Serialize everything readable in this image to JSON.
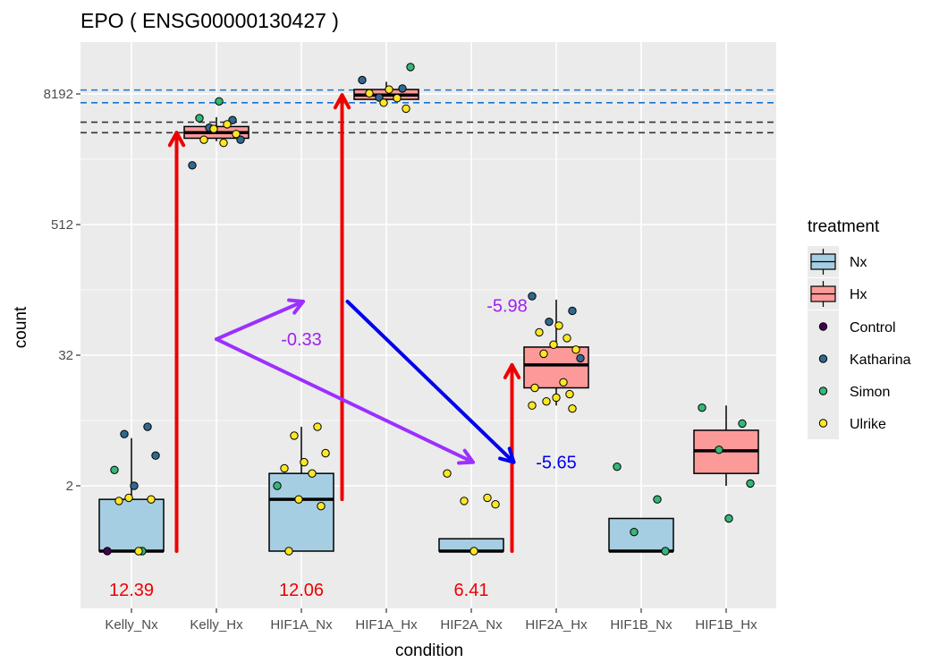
{
  "chart_data": {
    "type": "boxplot",
    "title": "EPO ( ENSG00000130427 )",
    "xlabel": "condition",
    "ylabel": "count",
    "y_scale": "log2",
    "y_ticks": [
      2,
      32,
      512,
      8192
    ],
    "y_tick_labels": [
      "2",
      "32",
      "512",
      "8192"
    ],
    "categories": [
      "Kelly_Nx",
      "Kelly_Hx",
      "HIF1A_Nx",
      "HIF1A_Hx",
      "HIF2A_Nx",
      "HIF2A_Hx",
      "HIF1B_Nx",
      "HIF1B_Hx"
    ],
    "boxes": [
      {
        "category": "Kelly_Nx",
        "treatment": "Nx",
        "min": 0.5,
        "q1": 0.5,
        "median": 0.5,
        "q3": 1.5,
        "max": 5.5
      },
      {
        "category": "Kelly_Hx",
        "treatment": "Hx",
        "min": 3000,
        "q1": 3200,
        "median": 3600,
        "q3": 4100,
        "max": 5000
      },
      {
        "category": "HIF1A_Nx",
        "treatment": "Nx",
        "min": 0.5,
        "q1": 0.5,
        "median": 1.5,
        "q3": 2.6,
        "max": 7.0
      },
      {
        "category": "HIF1A_Hx",
        "treatment": "Hx",
        "min": 7000,
        "q1": 7300,
        "median": 8000,
        "q3": 9000,
        "max": 10600
      },
      {
        "category": "HIF2A_Nx",
        "treatment": "Nx",
        "min": 0.5,
        "q1": 0.5,
        "median": 0.5,
        "q3": 0.65,
        "max": 0.65
      },
      {
        "category": "HIF2A_Hx",
        "treatment": "Hx",
        "min": 11,
        "q1": 16,
        "median": 26,
        "q3": 38,
        "max": 104
      },
      {
        "category": "HIF1B_Nx",
        "treatment": "Nx",
        "min": 0.5,
        "q1": 0.5,
        "median": 0.5,
        "q3": 1.0,
        "max": 1.0
      },
      {
        "category": "HIF1B_Hx",
        "treatment": "Hx",
        "min": 2.0,
        "q1": 2.6,
        "median": 4.2,
        "q3": 6.5,
        "max": 11
      }
    ],
    "points": [
      {
        "category": "Kelly_Nx",
        "sample": "Control",
        "y": 0.5
      },
      {
        "category": "Kelly_Nx",
        "sample": "Katharina",
        "y": 7.0
      },
      {
        "category": "Kelly_Nx",
        "sample": "Katharina",
        "y": 6.0
      },
      {
        "category": "Kelly_Nx",
        "sample": "Katharina",
        "y": 3.8
      },
      {
        "category": "Kelly_Nx",
        "sample": "Katharina",
        "y": 2.0
      },
      {
        "category": "Kelly_Nx",
        "sample": "Simon",
        "y": 2.8
      },
      {
        "category": "Kelly_Nx",
        "sample": "Simon",
        "y": 0.5
      },
      {
        "category": "Kelly_Nx",
        "sample": "Ulrike",
        "y": 1.55
      },
      {
        "category": "Kelly_Nx",
        "sample": "Ulrike",
        "y": 1.5
      },
      {
        "category": "Kelly_Nx",
        "sample": "Ulrike",
        "y": 1.45
      },
      {
        "category": "Kelly_Nx",
        "sample": "Ulrike",
        "y": 0.5
      },
      {
        "category": "Kelly_Hx",
        "sample": "Katharina",
        "y": 1800
      },
      {
        "category": "Kelly_Hx",
        "sample": "Katharina",
        "y": 4700
      },
      {
        "category": "Kelly_Hx",
        "sample": "Katharina",
        "y": 4000
      },
      {
        "category": "Kelly_Hx",
        "sample": "Katharina",
        "y": 3100
      },
      {
        "category": "Kelly_Hx",
        "sample": "Simon",
        "y": 7000
      },
      {
        "category": "Kelly_Hx",
        "sample": "Simon",
        "y": 4900
      },
      {
        "category": "Kelly_Hx",
        "sample": "Ulrike",
        "y": 4300
      },
      {
        "category": "Kelly_Hx",
        "sample": "Ulrike",
        "y": 3900
      },
      {
        "category": "Kelly_Hx",
        "sample": "Ulrike",
        "y": 3500
      },
      {
        "category": "Kelly_Hx",
        "sample": "Ulrike",
        "y": 3100
      },
      {
        "category": "Kelly_Hx",
        "sample": "Ulrike",
        "y": 2900
      },
      {
        "category": "HIF1A_Nx",
        "sample": "Simon",
        "y": 2.0
      },
      {
        "category": "HIF1A_Nx",
        "sample": "Ulrike",
        "y": 7.0
      },
      {
        "category": "HIF1A_Nx",
        "sample": "Ulrike",
        "y": 5.8
      },
      {
        "category": "HIF1A_Nx",
        "sample": "Ulrike",
        "y": 4.0
      },
      {
        "category": "HIF1A_Nx",
        "sample": "Ulrike",
        "y": 3.3
      },
      {
        "category": "HIF1A_Nx",
        "sample": "Ulrike",
        "y": 2.9
      },
      {
        "category": "HIF1A_Nx",
        "sample": "Ulrike",
        "y": 2.6
      },
      {
        "category": "HIF1A_Nx",
        "sample": "Ulrike",
        "y": 1.5
      },
      {
        "category": "HIF1A_Nx",
        "sample": "Ulrike",
        "y": 1.3
      },
      {
        "category": "HIF1A_Nx",
        "sample": "Ulrike",
        "y": 0.5
      },
      {
        "category": "HIF1A_Hx",
        "sample": "Katharina",
        "y": 11000
      },
      {
        "category": "HIF1A_Hx",
        "sample": "Katharina",
        "y": 9200
      },
      {
        "category": "HIF1A_Hx",
        "sample": "Katharina",
        "y": 7600
      },
      {
        "category": "HIF1A_Hx",
        "sample": "Simon",
        "y": 14500
      },
      {
        "category": "HIF1A_Hx",
        "sample": "Ulrike",
        "y": 9000
      },
      {
        "category": "HIF1A_Hx",
        "sample": "Ulrike",
        "y": 8300
      },
      {
        "category": "HIF1A_Hx",
        "sample": "Ulrike",
        "y": 7500
      },
      {
        "category": "HIF1A_Hx",
        "sample": "Ulrike",
        "y": 6800
      },
      {
        "category": "HIF1A_Hx",
        "sample": "Ulrike",
        "y": 6000
      },
      {
        "category": "HIF2A_Nx",
        "sample": "Ulrike",
        "y": 2.6
      },
      {
        "category": "HIF2A_Nx",
        "sample": "Ulrike",
        "y": 1.55
      },
      {
        "category": "HIF2A_Nx",
        "sample": "Ulrike",
        "y": 1.45
      },
      {
        "category": "HIF2A_Nx",
        "sample": "Ulrike",
        "y": 1.35
      },
      {
        "category": "HIF2A_Nx",
        "sample": "Ulrike",
        "y": 0.5
      },
      {
        "category": "HIF2A_Hx",
        "sample": "Katharina",
        "y": 112
      },
      {
        "category": "HIF2A_Hx",
        "sample": "Katharina",
        "y": 82
      },
      {
        "category": "HIF2A_Hx",
        "sample": "Katharina",
        "y": 65
      },
      {
        "category": "HIF2A_Hx",
        "sample": "Katharina",
        "y": 30
      },
      {
        "category": "HIF2A_Hx",
        "sample": "Ulrike",
        "y": 60
      },
      {
        "category": "HIF2A_Hx",
        "sample": "Ulrike",
        "y": 52
      },
      {
        "category": "HIF2A_Hx",
        "sample": "Ulrike",
        "y": 46
      },
      {
        "category": "HIF2A_Hx",
        "sample": "Ulrike",
        "y": 40
      },
      {
        "category": "HIF2A_Hx",
        "sample": "Ulrike",
        "y": 36
      },
      {
        "category": "HIF2A_Hx",
        "sample": "Ulrike",
        "y": 33
      },
      {
        "category": "HIF2A_Hx",
        "sample": "Ulrike",
        "y": 18
      },
      {
        "category": "HIF2A_Hx",
        "sample": "Ulrike",
        "y": 16
      },
      {
        "category": "HIF2A_Hx",
        "sample": "Ulrike",
        "y": 14
      },
      {
        "category": "HIF2A_Hx",
        "sample": "Ulrike",
        "y": 13
      },
      {
        "category": "HIF2A_Hx",
        "sample": "Ulrike",
        "y": 12
      },
      {
        "category": "HIF2A_Hx",
        "sample": "Ulrike",
        "y": 11
      },
      {
        "category": "HIF2A_Hx",
        "sample": "Ulrike",
        "y": 10.3
      },
      {
        "category": "HIF1B_Nx",
        "sample": "Simon",
        "y": 3.0
      },
      {
        "category": "HIF1B_Nx",
        "sample": "Simon",
        "y": 1.5
      },
      {
        "category": "HIF1B_Nx",
        "sample": "Simon",
        "y": 0.75
      },
      {
        "category": "HIF1B_Nx",
        "sample": "Simon",
        "y": 0.5
      },
      {
        "category": "HIF1B_Hx",
        "sample": "Simon",
        "y": 10.5
      },
      {
        "category": "HIF1B_Hx",
        "sample": "Simon",
        "y": 7.5
      },
      {
        "category": "HIF1B_Hx",
        "sample": "Simon",
        "y": 4.3
      },
      {
        "category": "HIF1B_Hx",
        "sample": "Simon",
        "y": 2.1
      },
      {
        "category": "HIF1B_Hx",
        "sample": "Simon",
        "y": 1.0
      }
    ],
    "reference_lines": [
      {
        "color": "#1874cd",
        "y": 8900
      },
      {
        "color": "#1874cd",
        "y": 6800
      },
      {
        "color": "#333333",
        "y": 4500
      },
      {
        "color": "#333333",
        "y": 3600
      }
    ],
    "annotations": [
      {
        "text": "12.39",
        "color": "#ee0000",
        "category": "Kelly_Nx",
        "y": 0.22
      },
      {
        "text": "12.06",
        "color": "#ee0000",
        "category": "HIF1A_Nx",
        "y": 0.22
      },
      {
        "text": "6.41",
        "color": "#ee0000",
        "category": "HIF2A_Nx",
        "y": 0.22
      },
      {
        "text": "-0.33",
        "color": "#a020f0",
        "category": "HIF1A_Nx",
        "y": 45
      },
      {
        "text": "-5.98",
        "color": "#a020f0",
        "category": "HIF2A_Nx",
        "y": 92
      },
      {
        "text": "-5.65",
        "color": "#0000ee",
        "category": "HIF2A_Hx",
        "y": 3.3
      }
    ],
    "legend": {
      "title": "treatment",
      "position": "right",
      "fill_entries": [
        {
          "label": "Nx",
          "color": "#a6cee3"
        },
        {
          "label": "Hx",
          "color": "#fb9a99"
        }
      ],
      "point_entries": [
        {
          "label": "Control",
          "color": "#440154"
        },
        {
          "label": "Katharina",
          "color": "#31688e"
        },
        {
          "label": "Simon",
          "color": "#35b779"
        },
        {
          "label": "Ulrike",
          "color": "#fde725"
        }
      ]
    },
    "colors": {
      "panel_background": "#ebebeb",
      "grid": "#ffffff",
      "nx_fill": "#a6cee3",
      "hx_fill": "#fb9a99",
      "red_arrow": "#ee0000",
      "purple_arrow": "#9b30ff",
      "blue_arrow": "#0000ee"
    }
  }
}
